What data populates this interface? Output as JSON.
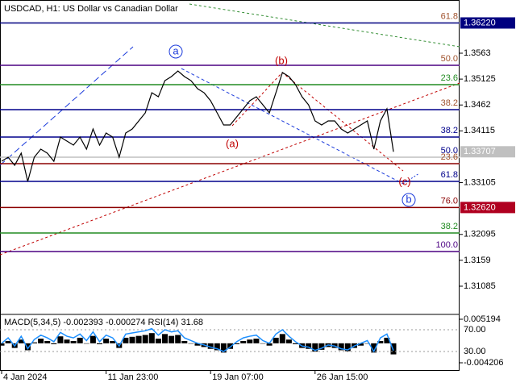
{
  "chart_data": {
    "type": "line",
    "title": "USDCAD, H1:  US Dollar vs Canadian Dollar",
    "categories": [
      "4 Jan 2024",
      null,
      null,
      null,
      null,
      null,
      null,
      null,
      null,
      null,
      null,
      null,
      null,
      null,
      null,
      null,
      "11 Jan 23:00",
      null,
      null,
      null,
      null,
      null,
      null,
      null,
      null,
      null,
      null,
      null,
      null,
      null,
      null,
      null,
      "19 Jan 07:00",
      null,
      null,
      null,
      null,
      null,
      null,
      null,
      null,
      null,
      null,
      null,
      null,
      null,
      null,
      null,
      "26 Jan 15:00",
      null,
      null,
      null,
      null,
      null,
      null,
      null,
      null,
      null,
      null,
      null,
      null
    ],
    "series": [
      {
        "name": "USDCAD",
        "color": "#000000",
        "values": [
          1.33522,
          1.33601,
          1.33444,
          1.3368,
          1.33129,
          1.33601,
          1.33758,
          1.3368,
          1.33522,
          1.33994,
          1.33916,
          1.33837,
          1.33994,
          1.33758,
          1.34152,
          1.33837,
          1.34073,
          1.33994,
          1.33601,
          1.34073,
          1.34152,
          1.34309,
          1.34466,
          1.34859,
          1.3478,
          1.35095,
          1.35174,
          1.35284,
          1.35174,
          1.35095,
          1.34938,
          1.34859,
          1.34702,
          1.34466,
          1.3423,
          1.3423,
          1.34388,
          1.34545,
          1.34702,
          1.3478,
          1.34623,
          1.34466,
          1.34859,
          1.35253,
          1.35174,
          1.35017,
          1.3478,
          1.34623,
          1.34309,
          1.3423,
          1.34309,
          1.34309,
          1.34152,
          1.34073,
          1.34152,
          1.3423,
          1.34309,
          1.33758,
          1.34309,
          1.34545,
          1.33707
        ]
      }
    ],
    "ylim": [
      1.30566,
      1.36668
    ],
    "yticks": [
      1.3563,
      1.35125,
      1.3462,
      1.34115,
      1.33105,
      1.32095,
      1.3159,
      1.31085
    ],
    "price_labels": [
      {
        "value": 1.3622,
        "label": "1.36220",
        "color": "#000080"
      },
      {
        "value": 1.33707,
        "label": "1.33707",
        "color": "#c0c0c0"
      },
      {
        "value": 1.3262,
        "label": "1.32620",
        "color": "#b00020"
      }
    ],
    "levels": [
      {
        "label": "61.8",
        "value": 1.3622,
        "color": "#a0522d",
        "line_color": "#000080"
      },
      {
        "label": "50.0",
        "value": 1.35394,
        "color": "#a0522d",
        "line_color": "#4b0082"
      },
      {
        "label": "23.6",
        "value": 1.35017,
        "color": "#228b22",
        "line_color": "#228b22"
      },
      {
        "label": "38.2",
        "value": 1.34529,
        "color": "#a0522d",
        "line_color": "#00008b"
      },
      {
        "label": "38.2",
        "value": 1.33994,
        "color": "#00008b",
        "line_color": "#00008b"
      },
      {
        "label": "50.0",
        "value": 1.33601,
        "color": "#00008b",
        "line_color": "#c0c0c0"
      },
      {
        "label": "23.6",
        "value": 1.33475,
        "color": "#a0522d",
        "line_color": "#8b0000"
      },
      {
        "label": "61.8",
        "value": 1.33129,
        "color": "#00008b",
        "line_color": "#00008b"
      },
      {
        "label": "76.0",
        "value": 1.3262,
        "color": "#8b0000",
        "line_color": "#8b0000"
      },
      {
        "label": "38.2",
        "value": 1.32123,
        "color": "#228b22",
        "line_color": "#228b22"
      },
      {
        "label": "100.0",
        "value": 1.31761,
        "color": "#4b0082",
        "line_color": "#4b0082"
      }
    ],
    "annotations": [
      "a",
      "(b)",
      "(a)",
      "(c)",
      "b"
    ],
    "indicator": {
      "title": "MACD(5,34,5) -0.002393 -0.000274 RSI(14) 31.68",
      "macd_ylim": [
        -0.005947,
        0.006238
      ],
      "macd_yticks": [
        0.005194,
        -0.004206
      ],
      "rsi_ylim": [
        -5.6,
        98.1
      ],
      "rsi_yticks": [
        {
          "value": 70,
          "label": "70.00"
        },
        {
          "value": 30,
          "label": "30.00"
        }
      ],
      "macd": [
        -0.0005,
        0.0005,
        -0.001,
        0.0008,
        -0.0015,
        0.0002,
        0.001,
        0.0005,
        -0.0002,
        0.0015,
        0.0008,
        0.0005,
        0.0012,
        0,
        0.0016,
        -0.0002,
        0.001,
        0.0005,
        -0.001,
        0.0012,
        0.0014,
        0.0016,
        0.0018,
        0.0022,
        0.001,
        0.002,
        0.0016,
        0.0018,
        0.0005,
        0,
        -0.0005,
        -0.0008,
        -0.0012,
        -0.0015,
        -0.002,
        -0.0012,
        -0.0002,
        0.0005,
        0.0008,
        0.001,
        0,
        -0.0005,
        0.0012,
        0.002,
        0.0008,
        -0.0002,
        -0.001,
        -0.0012,
        -0.0018,
        -0.0014,
        -0.0008,
        -0.001,
        -0.0015,
        -0.0017,
        -0.001,
        -0.0005,
        0,
        -0.002,
        0.0005,
        0.0012,
        -0.002393
      ],
      "rsi_color": "#1e90ff",
      "rsi": [
        45,
        55,
        40,
        58,
        35,
        52,
        60,
        55,
        48,
        65,
        58,
        55,
        62,
        50,
        66,
        48,
        60,
        55,
        40,
        62,
        64,
        66,
        68,
        72,
        60,
        70,
        66,
        68,
        55,
        50,
        45,
        42,
        38,
        35,
        30,
        38,
        48,
        55,
        58,
        60,
        50,
        45,
        62,
        70,
        58,
        48,
        40,
        38,
        32,
        36,
        42,
        40,
        35,
        33,
        40,
        45,
        50,
        30,
        55,
        62,
        31.68
      ]
    }
  }
}
